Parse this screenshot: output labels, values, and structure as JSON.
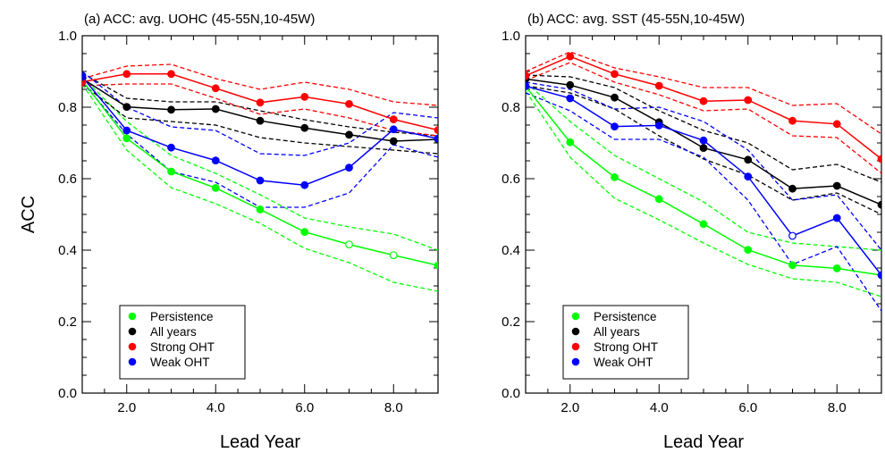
{
  "chart_data": [
    {
      "type": "line",
      "title": "(a) ACC: avg. UOHC (45-55N,10-45W)",
      "xlabel": "Lead Year",
      "ylabel": "ACC",
      "xlim": [
        1,
        9
      ],
      "ylim": [
        0,
        1
      ],
      "xticks": [
        "2.0",
        "4.0",
        "6.0",
        "8.0"
      ],
      "yticks": [
        "0.0",
        "0.2",
        "0.4",
        "0.6",
        "0.8",
        "1.0"
      ],
      "x": [
        1,
        2,
        3,
        4,
        5,
        6,
        7,
        8,
        9
      ],
      "legend_position": "bottom-left",
      "series": [
        {
          "name": "Persistence",
          "color": "#00ff00",
          "values": [
            0.875,
            0.713,
            0.62,
            0.574,
            0.514,
            0.451,
            0.416,
            0.386,
            0.357
          ],
          "open_markers": [
            7,
            8
          ],
          "upper": [
            0.885,
            0.76,
            0.665,
            0.615,
            0.555,
            0.49,
            0.465,
            0.445,
            0.4
          ],
          "lower": [
            0.865,
            0.68,
            0.575,
            0.53,
            0.475,
            0.405,
            0.365,
            0.31,
            0.285
          ]
        },
        {
          "name": "All years",
          "color": "#000000",
          "values": [
            0.88,
            0.801,
            0.793,
            0.795,
            0.762,
            0.742,
            0.723,
            0.705,
            0.71
          ],
          "open_markers": [],
          "upper": [
            0.895,
            0.825,
            0.815,
            0.815,
            0.79,
            0.765,
            0.745,
            0.73,
            0.72
          ],
          "lower": [
            0.865,
            0.77,
            0.76,
            0.75,
            0.715,
            0.7,
            0.69,
            0.68,
            0.67
          ]
        },
        {
          "name": "Strong OHT",
          "color": "#ff0000",
          "values": [
            0.871,
            0.893,
            0.893,
            0.853,
            0.813,
            0.829,
            0.809,
            0.766,
            0.736
          ],
          "open_markers": [],
          "upper": [
            0.88,
            0.915,
            0.92,
            0.88,
            0.85,
            0.87,
            0.85,
            0.815,
            0.805
          ],
          "lower": [
            0.86,
            0.865,
            0.865,
            0.825,
            0.78,
            0.795,
            0.77,
            0.735,
            0.72
          ]
        },
        {
          "name": "Weak OHT",
          "color": "#0000ff",
          "values": [
            0.885,
            0.735,
            0.687,
            0.651,
            0.595,
            0.582,
            0.631,
            0.738,
            0.712
          ],
          "open_markers": [],
          "upper": [
            0.9,
            0.8,
            0.745,
            0.735,
            0.67,
            0.665,
            0.7,
            0.785,
            0.77
          ],
          "lower": [
            0.87,
            0.725,
            0.62,
            0.59,
            0.52,
            0.52,
            0.56,
            0.695,
            0.66
          ]
        }
      ]
    },
    {
      "type": "line",
      "title": "(b) ACC: avg. SST (45-55N,10-45W)",
      "xlabel": "Lead Year",
      "ylabel": "",
      "xlim": [
        1,
        9
      ],
      "ylim": [
        0,
        1
      ],
      "xticks": [
        "2.0",
        "4.0",
        "6.0",
        "8.0"
      ],
      "yticks": [
        "0.0",
        "0.2",
        "0.4",
        "0.6",
        "0.8",
        "1.0"
      ],
      "x": [
        1,
        2,
        3,
        4,
        5,
        6,
        7,
        8,
        9
      ],
      "legend_position": "bottom-left",
      "series": [
        {
          "name": "Persistence",
          "color": "#00ff00",
          "values": [
            0.858,
            0.702,
            0.604,
            0.543,
            0.473,
            0.401,
            0.358,
            0.349,
            0.33
          ],
          "open_markers": [],
          "upper": [
            0.87,
            0.76,
            0.665,
            0.6,
            0.535,
            0.45,
            0.42,
            0.41,
            0.4
          ],
          "lower": [
            0.845,
            0.66,
            0.545,
            0.485,
            0.42,
            0.36,
            0.32,
            0.31,
            0.27
          ]
        },
        {
          "name": "All years",
          "color": "#000000",
          "values": [
            0.879,
            0.862,
            0.827,
            0.758,
            0.686,
            0.653,
            0.572,
            0.58,
            0.527
          ],
          "open_markers": [],
          "upper": [
            0.89,
            0.885,
            0.855,
            0.79,
            0.735,
            0.7,
            0.625,
            0.64,
            0.59
          ],
          "lower": [
            0.86,
            0.84,
            0.795,
            0.72,
            0.655,
            0.61,
            0.54,
            0.56,
            0.5
          ]
        },
        {
          "name": "Strong OHT",
          "color": "#ff0000",
          "values": [
            0.888,
            0.942,
            0.893,
            0.86,
            0.817,
            0.82,
            0.762,
            0.753,
            0.655
          ],
          "open_markers": [],
          "upper": [
            0.9,
            0.955,
            0.91,
            0.885,
            0.855,
            0.855,
            0.805,
            0.81,
            0.725
          ],
          "lower": [
            0.875,
            0.925,
            0.87,
            0.835,
            0.79,
            0.795,
            0.72,
            0.715,
            0.615
          ]
        },
        {
          "name": "Weak OHT",
          "color": "#0000ff",
          "values": [
            0.859,
            0.825,
            0.746,
            0.749,
            0.707,
            0.606,
            0.44,
            0.49,
            0.33
          ],
          "open_markers": [
            7
          ],
          "upper": [
            0.87,
            0.85,
            0.795,
            0.8,
            0.76,
            0.68,
            0.54,
            0.555,
            0.4
          ],
          "lower": [
            0.84,
            0.79,
            0.71,
            0.71,
            0.66,
            0.54,
            0.36,
            0.41,
            0.23
          ]
        }
      ]
    }
  ]
}
